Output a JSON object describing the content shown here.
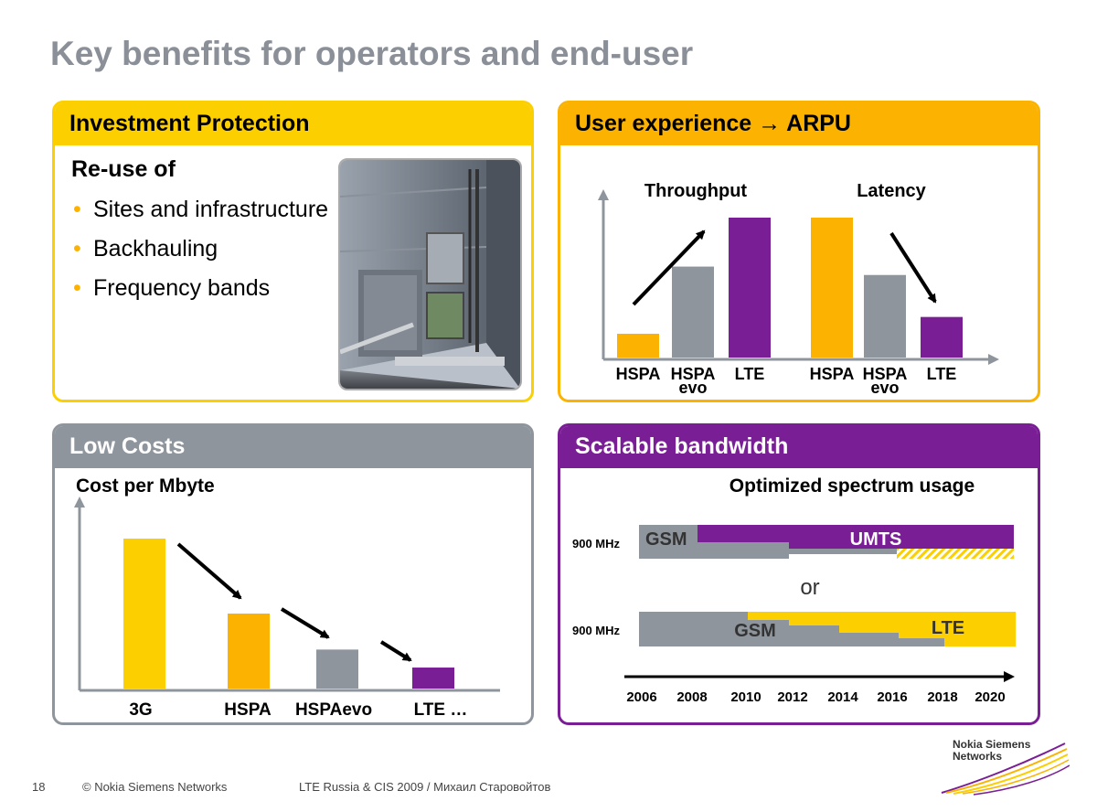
{
  "title": "Key benefits for operators and end-user",
  "investment": {
    "header": "Investment Protection",
    "reuse_label": "Re-use of",
    "bullets": [
      "Sites and infrastructure",
      "Backhauling",
      "Frequency bands"
    ],
    "bullet_symbol": "•"
  },
  "user_experience": {
    "header": "User experience → ARPU",
    "labels": {
      "throughput": "Throughput",
      "latency": "Latency"
    }
  },
  "low_costs": {
    "header": "Low Costs",
    "subtitle": "Cost per Mbyte"
  },
  "scalable": {
    "header": "Scalable bandwidth",
    "subtitle": "Optimized spectrum usage",
    "band_label_1": "900 MHz",
    "band_label_2": "900 MHz",
    "gsm_label_1": "GSM",
    "umts_label": "UMTS",
    "or_label": "or",
    "gsm_label_2": "GSM",
    "lte_label": "LTE"
  },
  "chart_data": [
    {
      "type": "bar",
      "title": "Throughput",
      "categories": [
        "HSPA",
        "HSPA evo",
        "LTE"
      ],
      "values": [
        1.7,
        6.5,
        10
      ],
      "colors": [
        "#fbb200",
        "#8f959d",
        "#7a1e96"
      ]
    },
    {
      "type": "bar",
      "title": "Latency",
      "categories": [
        "HSPA",
        "HSPA evo",
        "LTE"
      ],
      "values": [
        10,
        5.9,
        2.9
      ],
      "colors": [
        "#fbb200",
        "#8f959d",
        "#7a1e96"
      ]
    },
    {
      "type": "bar",
      "title": "Cost per Mbyte",
      "categories": [
        "3G",
        "HSPA",
        "HSPAevo",
        "LTE …"
      ],
      "values": [
        10,
        5,
        2.6,
        1.4
      ],
      "colors": [
        "#fccf00",
        "#fbb200",
        "#8f959d",
        "#7a1e96"
      ]
    },
    {
      "type": "timeline",
      "title": "Optimized spectrum usage",
      "x_ticks": [
        "2006",
        "2008",
        "2010",
        "2012",
        "2014",
        "2016",
        "2018",
        "2020"
      ]
    }
  ],
  "footer": {
    "page": "18",
    "copyright": "© Nokia Siemens Networks",
    "event": "LTE Russia & CIS 2009 / Михаил Старовойтов",
    "logo_line1": "Nokia Siemens",
    "logo_line2": "Networks"
  }
}
